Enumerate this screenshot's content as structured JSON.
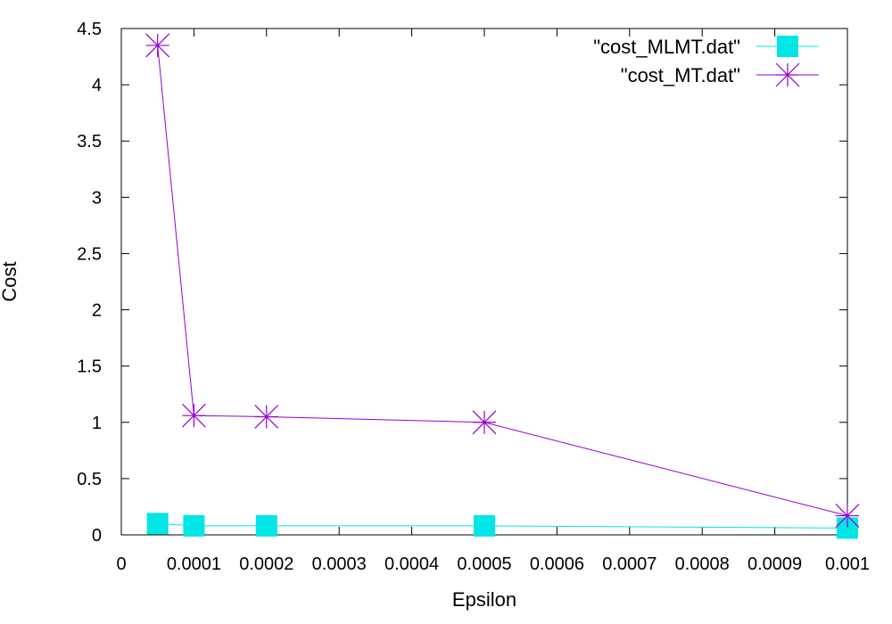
{
  "chart_data": {
    "type": "line",
    "xlabel": "Epsilon",
    "ylabel": "Cost",
    "xlim": [
      0,
      0.001
    ],
    "ylim": [
      0,
      4.5
    ],
    "x_ticks": [
      "0",
      "0.0001",
      "0.0002",
      "0.0003",
      "0.0004",
      "0.0005",
      "0.0006",
      "0.0007",
      "0.0008",
      "0.0009",
      "0.001"
    ],
    "y_ticks": [
      "0",
      "0.5",
      "1",
      "1.5",
      "2",
      "2.5",
      "3",
      "3.5",
      "4",
      "4.5"
    ],
    "grid": false,
    "legend_position": "top-right",
    "series": [
      {
        "name": "\"cost_MLMT.dat\"",
        "color": "#00e5e5",
        "marker": "filled-square",
        "points": [
          {
            "x": 5e-05,
            "y": 0.1
          },
          {
            "x": 0.0001,
            "y": 0.08
          },
          {
            "x": 0.0002,
            "y": 0.08
          },
          {
            "x": 0.0005,
            "y": 0.08
          },
          {
            "x": 0.001,
            "y": 0.06
          }
        ]
      },
      {
        "name": "\"cost_MT.dat\"",
        "color": "#9400d3",
        "marker": "asterisk",
        "points": [
          {
            "x": 5e-05,
            "y": 4.35
          },
          {
            "x": 0.0001,
            "y": 1.06
          },
          {
            "x": 0.0002,
            "y": 1.05
          },
          {
            "x": 0.0005,
            "y": 1.0
          },
          {
            "x": 0.001,
            "y": 0.17
          }
        ]
      }
    ]
  }
}
